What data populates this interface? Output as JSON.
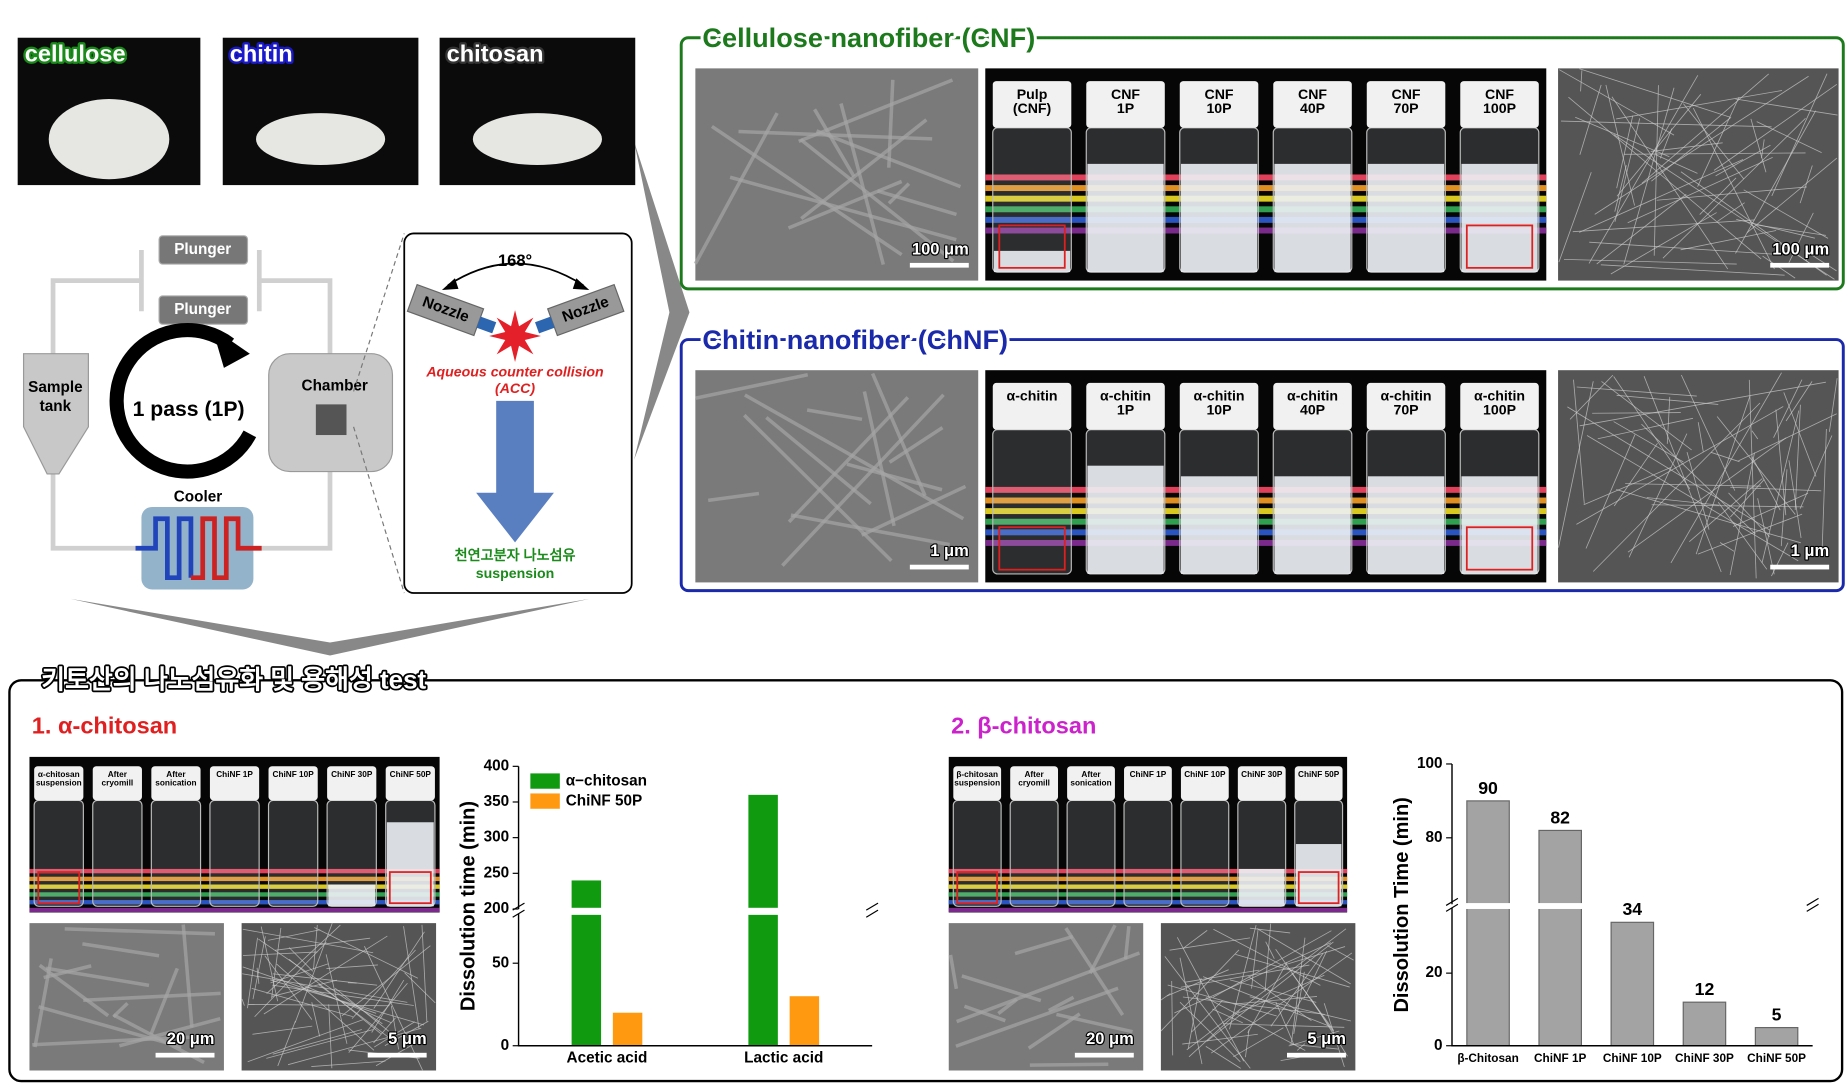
{
  "materials": [
    "cellulose",
    "chitin",
    "chitosan"
  ],
  "process": {
    "plungers": [
      "Plunger",
      "Plunger"
    ],
    "sample_tank": [
      "Sample",
      "tank"
    ],
    "cycle": "1 pass (1P)",
    "chamber": "Chamber",
    "cooler": "Cooler",
    "angle": "168°",
    "nozzles": [
      "Nozzle",
      "Nozzle"
    ],
    "collision": [
      "Aqueous counter collision",
      "(ACC)"
    ],
    "product": [
      "천연고분자 나노섬유",
      "suspension"
    ]
  },
  "cnf": {
    "title": "Cellulose nanofiber (CNF)",
    "vials": [
      [
        "Pulp",
        "(CNF)"
      ],
      [
        "CNF",
        "1P"
      ],
      [
        "CNF",
        "10P"
      ],
      [
        "CNF",
        "40P"
      ],
      [
        "CNF",
        "70P"
      ],
      [
        "CNF",
        "100P"
      ]
    ],
    "scale_bars": [
      "100 μm",
      "100 μm"
    ]
  },
  "chnf": {
    "title": "Chitin nanofiber (ChNF)",
    "vials": [
      [
        "α-chitin"
      ],
      [
        "α-chitin",
        "1P"
      ],
      [
        "α-chitin",
        "10P"
      ],
      [
        "α-chitin",
        "40P"
      ],
      [
        "α-chitin",
        "70P"
      ],
      [
        "α-chitin",
        "100P"
      ]
    ],
    "scale_bars": [
      "1 μm",
      "1 μm"
    ]
  },
  "chitosan_test": {
    "title": "키토산의 나노섬유화 및 용해성 test",
    "alpha": {
      "label": "1. α-chitosan",
      "vials": [
        [
          "α-chitosan",
          "suspension"
        ],
        [
          "After",
          "cryomill"
        ],
        [
          "After",
          "sonication"
        ],
        [
          "ChiNF 1P"
        ],
        [
          "ChiNF 10P"
        ],
        [
          "ChiNF 30P"
        ],
        [
          "ChiNF 50P"
        ]
      ],
      "scale_bars": [
        "20 μm",
        "5 μm"
      ]
    },
    "beta": {
      "label": "2. β-chitosan",
      "vials": [
        [
          "β-chitosan",
          "suspension"
        ],
        [
          "After",
          "cryomill"
        ],
        [
          "After",
          "sonication"
        ],
        [
          "ChiNF 1P"
        ],
        [
          "ChiNF 10P"
        ],
        [
          "ChiNF 30P"
        ],
        [
          "ChiNF 50P"
        ]
      ],
      "scale_bars": [
        "20 μm",
        "5 μm"
      ]
    }
  },
  "chart_data": [
    {
      "type": "bar",
      "y_label": "Dissolution time (min)",
      "categories": [
        "Acetic acid",
        "Lactic acid"
      ],
      "series": [
        {
          "name": "α−chitosan",
          "color": "#109a10",
          "values": [
            240,
            360
          ]
        },
        {
          "name": "ChiNF 50P",
          "color": "#ff9a10",
          "values": [
            20,
            30
          ]
        }
      ],
      "ylim": [
        0,
        400
      ],
      "ybreak": [
        80,
        200
      ],
      "yticks": [
        0,
        50,
        200,
        250,
        300,
        350,
        400
      ],
      "legend": "upper left"
    },
    {
      "type": "bar",
      "y_label": "Dissolution Time (min)",
      "categories": [
        "β-Chitosan",
        "ChiNF 1P",
        "ChiNF 10P",
        "ChiNF 30P",
        "ChiNF 50P"
      ],
      "values": [
        90,
        82,
        34,
        12,
        5
      ],
      "color": "#a3a3a3",
      "ylim": [
        0,
        100
      ],
      "ybreak": [
        38,
        62
      ],
      "yticks": [
        0,
        20,
        80,
        100
      ]
    }
  ]
}
